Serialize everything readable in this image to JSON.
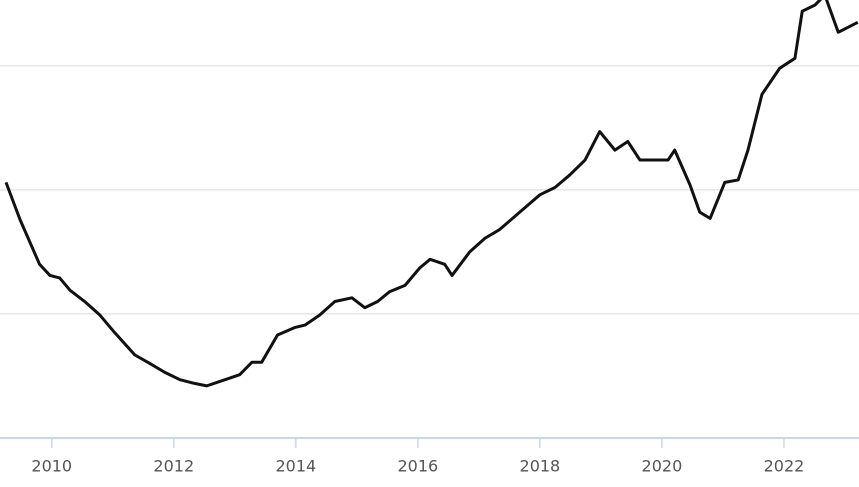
{
  "chart_data": {
    "type": "line",
    "x": [
      2009.25,
      2009.48,
      2009.8,
      2009.97,
      2010.13,
      2010.3,
      2010.54,
      2010.79,
      2011.03,
      2011.36,
      2011.61,
      2011.85,
      2012.1,
      2012.34,
      2012.54,
      2012.84,
      2013.08,
      2013.28,
      2013.44,
      2013.7,
      2013.98,
      2014.15,
      2014.39,
      2014.64,
      2014.92,
      2015.13,
      2015.34,
      2015.54,
      2015.79,
      2016.03,
      2016.2,
      2016.44,
      2016.56,
      2016.85,
      2017.1,
      2017.34,
      2017.67,
      2018.0,
      2018.25,
      2018.49,
      2018.74,
      2018.98,
      2019.23,
      2019.44,
      2019.64,
      2019.89,
      2020.1,
      2020.21,
      2020.46,
      2020.62,
      2020.79,
      2021.03,
      2021.25,
      2021.41,
      2021.64,
      2021.93,
      2022.18,
      2022.3,
      2022.51,
      2022.67,
      2022.89,
      2023.05,
      2023.21
    ],
    "series": [
      {
        "color": "#111111",
        "values": [
          2.06,
          1.76,
          1.4,
          1.31,
          1.29,
          1.19,
          1.1,
          0.99,
          0.85,
          0.67,
          0.6,
          0.53,
          0.47,
          0.44,
          0.42,
          0.47,
          0.51,
          0.61,
          0.61,
          0.83,
          0.89,
          0.91,
          0.99,
          1.1,
          1.13,
          1.05,
          1.1,
          1.18,
          1.23,
          1.37,
          1.44,
          1.4,
          1.31,
          1.5,
          1.61,
          1.68,
          1.82,
          1.96,
          2.02,
          2.12,
          2.24,
          2.47,
          2.32,
          2.39,
          2.24,
          2.24,
          2.24,
          2.32,
          2.04,
          1.82,
          1.77,
          2.06,
          2.08,
          2.32,
          2.77,
          2.98,
          3.06,
          3.44,
          3.49,
          3.57,
          3.27,
          3.31,
          3.35
        ]
      }
    ],
    "xlim": [
      2009.25,
      2023.23
    ],
    "xticks": [
      2010,
      2012,
      2014,
      2016,
      2018,
      2020,
      2022
    ],
    "ylim": [
      0,
      3.53
    ],
    "ygrid": [
      1,
      2,
      3
    ],
    "grid": true
  }
}
